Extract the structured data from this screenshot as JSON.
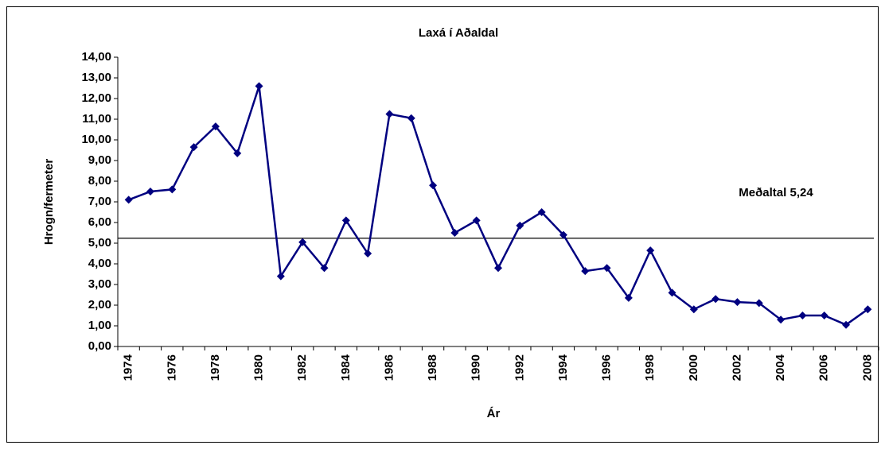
{
  "chart_data": {
    "type": "line",
    "title": "Laxá í Aðaldal",
    "y_label": "Hrogn/fermeter",
    "x_label": "Ár",
    "categories": [
      "1974",
      null,
      "1976",
      null,
      "1978",
      null,
      "1980",
      null,
      "1982",
      null,
      "1984",
      null,
      "1986",
      null,
      "1988",
      null,
      "1990",
      null,
      "1992",
      null,
      "1994",
      null,
      "1996",
      null,
      "1998",
      null,
      "2000",
      null,
      "2002",
      null,
      "2004",
      null,
      "2006",
      null,
      "2008"
    ],
    "series": [
      {
        "name": "Laxá í Aðaldal",
        "color": "#000080",
        "values": [
          7.1,
          7.5,
          7.6,
          9.65,
          10.65,
          9.35,
          12.6,
          3.4,
          5.05,
          3.8,
          6.1,
          4.5,
          11.25,
          11.05,
          7.8,
          5.5,
          6.1,
          3.8,
          5.85,
          6.5,
          5.4,
          3.65,
          3.8,
          2.35,
          4.65,
          2.6,
          1.8,
          2.3,
          2.15,
          2.1,
          1.3,
          1.5,
          1.5,
          1.05,
          1.8
        ]
      }
    ],
    "mean": {
      "value": 5.24,
      "label": "Meðaltal 5,24"
    },
    "ylim": [
      0,
      14
    ],
    "yticks": [
      {
        "value": 0,
        "label": "0,00"
      },
      {
        "value": 1,
        "label": "1,00"
      },
      {
        "value": 2,
        "label": "2,00"
      },
      {
        "value": 3,
        "label": "3,00"
      },
      {
        "value": 4,
        "label": "4,00"
      },
      {
        "value": 5,
        "label": "5,00"
      },
      {
        "value": 6,
        "label": "6,00"
      },
      {
        "value": 7,
        "label": "7,00"
      },
      {
        "value": 8,
        "label": "8,00"
      },
      {
        "value": 9,
        "label": "9,00"
      },
      {
        "value": 10,
        "label": "10,00"
      },
      {
        "value": 11,
        "label": "11,00"
      },
      {
        "value": 12,
        "label": "12,00"
      },
      {
        "value": 13,
        "label": "13,00"
      },
      {
        "value": 14,
        "label": "14,00"
      }
    ],
    "grid": false
  }
}
